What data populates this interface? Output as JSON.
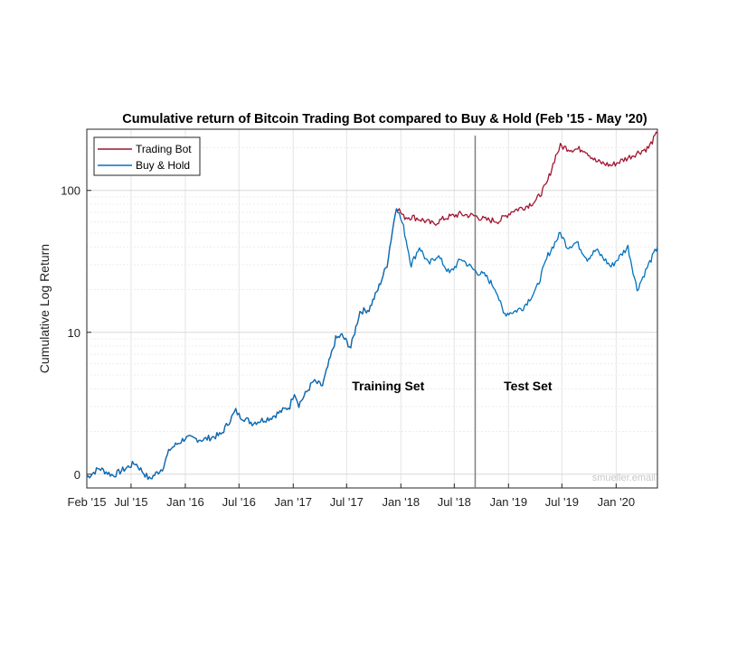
{
  "chart_data": {
    "type": "line",
    "title": "Cumulative return of Bitcoin Trading Bot compared to Buy & Hold (Feb '15 - May '20)",
    "xlabel": "",
    "ylabel": "Cumulative Log Return",
    "x_range": [
      "2015-02-01",
      "2020-05-20"
    ],
    "ylim": [
      0.8,
      270
    ],
    "y_scale": "log",
    "y_ticks": [
      {
        "value": 1,
        "label": "0"
      },
      {
        "value": 10,
        "label": "10"
      },
      {
        "value": 100,
        "label": "100"
      }
    ],
    "x_ticks": [
      {
        "date": "2015-02-01",
        "label": "Feb '15"
      },
      {
        "date": "2015-07-01",
        "label": "Jul '15"
      },
      {
        "date": "2016-01-01",
        "label": "Jan '16"
      },
      {
        "date": "2016-07-01",
        "label": "Jul '16"
      },
      {
        "date": "2017-01-01",
        "label": "Jan '17"
      },
      {
        "date": "2017-07-01",
        "label": "Jul '17"
      },
      {
        "date": "2018-01-01",
        "label": "Jan '18"
      },
      {
        "date": "2018-07-01",
        "label": "Jul '18"
      },
      {
        "date": "2019-01-01",
        "label": "Jan '19"
      },
      {
        "date": "2019-07-01",
        "label": "Jul '19"
      },
      {
        "date": "2020-01-01",
        "label": "Jan '20"
      }
    ],
    "grid": true,
    "legend_position": "top-left",
    "split_date": "2018-09-10",
    "annotations": [
      {
        "text": "Training Set",
        "date": "2018-01-01",
        "value": 4.2
      },
      {
        "text": "Test Set",
        "date": "2019-04-20",
        "value": 4.2
      }
    ],
    "watermark": "smueller.email",
    "series": [
      {
        "name": "Trading Bot",
        "color": "#a2142f",
        "points": [
          [
            "2015-02-01",
            0.95
          ],
          [
            "2015-03-15",
            1.1
          ],
          [
            "2015-05-01",
            0.98
          ],
          [
            "2015-07-15",
            1.2
          ],
          [
            "2015-09-01",
            0.92
          ],
          [
            "2015-10-15",
            1.1
          ],
          [
            "2015-11-10",
            1.5
          ],
          [
            "2016-01-01",
            1.8
          ],
          [
            "2016-03-01",
            1.75
          ],
          [
            "2016-05-01",
            1.9
          ],
          [
            "2016-06-20",
            2.8
          ],
          [
            "2016-07-01",
            2.6
          ],
          [
            "2016-08-15",
            2.3
          ],
          [
            "2016-10-15",
            2.5
          ],
          [
            "2016-12-20",
            3.0
          ],
          [
            "2017-01-05",
            3.8
          ],
          [
            "2017-01-20",
            3.1
          ],
          [
            "2017-03-10",
            4.5
          ],
          [
            "2017-04-10",
            4.2
          ],
          [
            "2017-05-25",
            9.0
          ],
          [
            "2017-06-15",
            9.5
          ],
          [
            "2017-07-15",
            7.8
          ],
          [
            "2017-08-15",
            14.0
          ],
          [
            "2017-09-15",
            14.5
          ],
          [
            "2017-10-15",
            20.0
          ],
          [
            "2017-11-15",
            30.0
          ],
          [
            "2017-12-17",
            78.0
          ],
          [
            "2018-01-10",
            65.0
          ],
          [
            "2018-02-10",
            65.0
          ],
          [
            "2018-03-15",
            62.0
          ],
          [
            "2018-04-20",
            58.0
          ],
          [
            "2018-06-01",
            64.0
          ],
          [
            "2018-07-20",
            68.0
          ],
          [
            "2018-09-10",
            66.0
          ],
          [
            "2018-10-15",
            62.0
          ],
          [
            "2018-12-01",
            61.0
          ],
          [
            "2019-01-15",
            72.0
          ],
          [
            "2019-03-01",
            77.0
          ],
          [
            "2019-04-05",
            85.0
          ],
          [
            "2019-05-10",
            110.0
          ],
          [
            "2019-06-10",
            175.0
          ],
          [
            "2019-06-26",
            205.0
          ],
          [
            "2019-08-01",
            195.0
          ],
          [
            "2019-09-15",
            195.0
          ],
          [
            "2019-10-25",
            160.0
          ],
          [
            "2019-12-15",
            150.0
          ],
          [
            "2020-02-10",
            170.0
          ],
          [
            "2020-03-15",
            185.0
          ],
          [
            "2020-04-20",
            200.0
          ],
          [
            "2020-05-20",
            255.0
          ]
        ]
      },
      {
        "name": "Buy & Hold",
        "color": "#0072bd",
        "points": [
          [
            "2015-02-01",
            0.95
          ],
          [
            "2015-03-15",
            1.1
          ],
          [
            "2015-05-01",
            0.98
          ],
          [
            "2015-07-15",
            1.2
          ],
          [
            "2015-09-01",
            0.92
          ],
          [
            "2015-10-15",
            1.1
          ],
          [
            "2015-11-10",
            1.5
          ],
          [
            "2016-01-01",
            1.8
          ],
          [
            "2016-03-01",
            1.75
          ],
          [
            "2016-05-01",
            1.9
          ],
          [
            "2016-06-20",
            2.8
          ],
          [
            "2016-07-01",
            2.6
          ],
          [
            "2016-08-15",
            2.3
          ],
          [
            "2016-10-15",
            2.5
          ],
          [
            "2016-12-20",
            3.0
          ],
          [
            "2017-01-05",
            3.8
          ],
          [
            "2017-01-20",
            3.1
          ],
          [
            "2017-03-10",
            4.5
          ],
          [
            "2017-04-10",
            4.2
          ],
          [
            "2017-05-25",
            9.0
          ],
          [
            "2017-06-15",
            9.5
          ],
          [
            "2017-07-15",
            7.8
          ],
          [
            "2017-08-15",
            14.0
          ],
          [
            "2017-09-15",
            14.5
          ],
          [
            "2017-10-15",
            20.0
          ],
          [
            "2017-11-15",
            30.0
          ],
          [
            "2017-12-17",
            78.0
          ],
          [
            "2018-01-10",
            55.0
          ],
          [
            "2018-02-05",
            30.0
          ],
          [
            "2018-03-05",
            40.0
          ],
          [
            "2018-04-05",
            30.0
          ],
          [
            "2018-05-05",
            35.0
          ],
          [
            "2018-06-15",
            26.0
          ],
          [
            "2018-07-25",
            33.0
          ],
          [
            "2018-09-10",
            27.0
          ],
          [
            "2018-10-15",
            25.0
          ],
          [
            "2018-11-20",
            20.0
          ],
          [
            "2018-12-15",
            13.5
          ],
          [
            "2019-01-20",
            14.0
          ],
          [
            "2019-02-20",
            15.0
          ],
          [
            "2019-04-05",
            20.0
          ],
          [
            "2019-05-15",
            35.0
          ],
          [
            "2019-06-26",
            50.0
          ],
          [
            "2019-07-20",
            40.0
          ],
          [
            "2019-08-20",
            43.0
          ],
          [
            "2019-09-25",
            33.0
          ],
          [
            "2019-10-25",
            38.0
          ],
          [
            "2019-12-15",
            29.0
          ],
          [
            "2020-02-10",
            40.0
          ],
          [
            "2020-03-12",
            20.0
          ],
          [
            "2020-04-20",
            30.0
          ],
          [
            "2020-05-20",
            40.0
          ]
        ]
      }
    ]
  }
}
